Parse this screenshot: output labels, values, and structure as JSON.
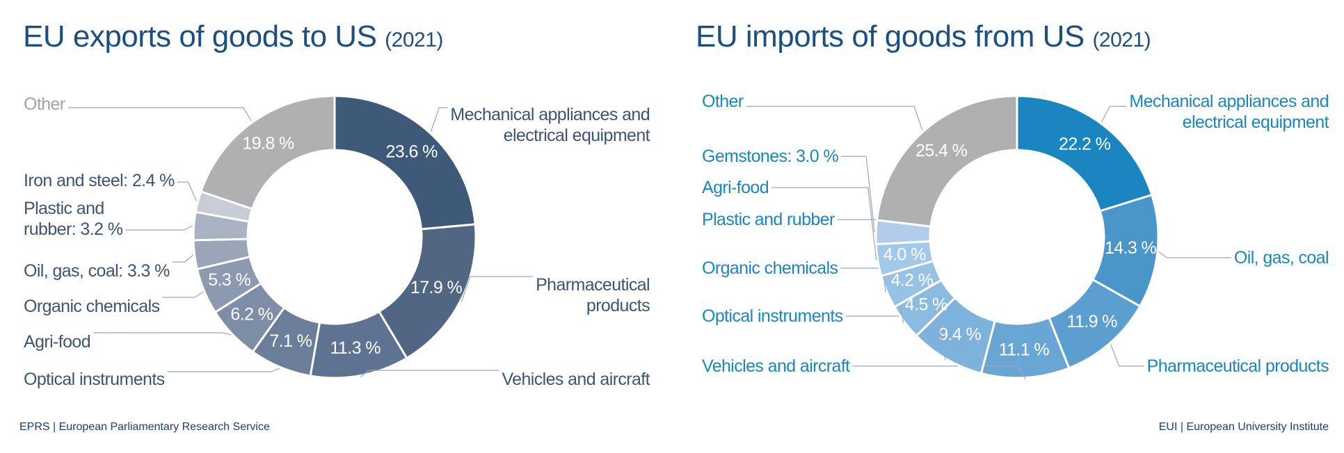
{
  "chart_data": [
    {
      "type": "donut",
      "title": "EU exports of goods to US",
      "subtitle": "(2021)",
      "categories": [
        "Mechanical appliances and electrical equipment",
        "Pharmaceutical products",
        "Vehicles and aircraft",
        "Optical instruments",
        "Agri-food",
        "Organic chemicals",
        "Oil, gas, coal",
        "Plastic and rubber",
        "Iron and steel",
        "Other"
      ],
      "values": [
        23.6,
        17.9,
        11.3,
        7.1,
        6.2,
        5.3,
        3.3,
        3.2,
        2.4,
        19.8
      ],
      "value_labels": [
        "23.6 %",
        "17.9 %",
        "11.3 %",
        "7.1 %",
        "6.2 %",
        "5.3 %",
        "3.3 %",
        "3.2 %",
        "2.4 %",
        "19.8 %"
      ],
      "colors": [
        "#3f5a78",
        "#516682",
        "#5e7391",
        "#6b7e99",
        "#7d8ea6",
        "#8c9ab0",
        "#9aa5b8",
        "#a9b2c2",
        "#c8ccd6",
        "#b0afb1"
      ],
      "source": "EPRS | European Parliamentary Research Service"
    },
    {
      "type": "donut",
      "title": "EU imports of goods from US",
      "subtitle": "(2021)",
      "categories": [
        "Mechanical appliances and electrical equipment",
        "Oil, gas, coal",
        "Pharmaceutical products",
        "Vehicles and aircraft",
        "Optical instruments",
        "Organic chemicals",
        "Plastic and rubber",
        "Agri-food",
        "Gemstones",
        "Other"
      ],
      "values": [
        22.2,
        14.3,
        11.9,
        11.1,
        9.4,
        4.5,
        4.2,
        4.0,
        3.0,
        25.4
      ],
      "value_labels": [
        "22.2 %",
        "14.3 %",
        "11.9 %",
        "11.1 %",
        "9.4 %",
        "4.5 %",
        "4.2 %",
        "4.0 %",
        "3.0 %",
        "25.4 %"
      ],
      "colors": [
        "#1a86c0",
        "#4a95c9",
        "#5b9fd0",
        "#6aa6d4",
        "#7db2dc",
        "#8cbbe0",
        "#98c2e4",
        "#a3c9e8",
        "#b2cdea",
        "#b0afb1"
      ],
      "source": "EUI | European University Institute"
    }
  ]
}
